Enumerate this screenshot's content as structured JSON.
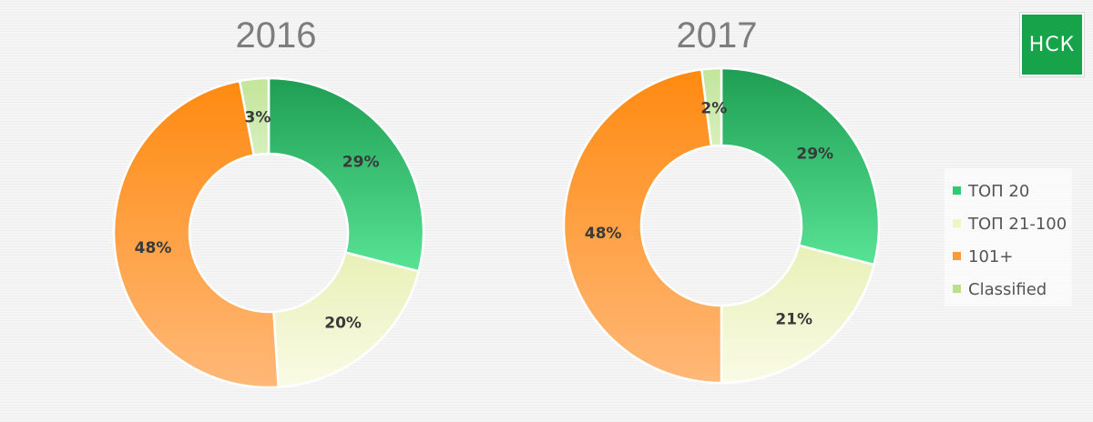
{
  "logo": {
    "text": "НСК",
    "color": "#16a34a"
  },
  "chart_data": [
    {
      "type": "pie",
      "title": "2016",
      "categories": [
        "ТОП 20",
        "ТОП 21-100",
        "101+",
        "Classified"
      ],
      "values": [
        29,
        20,
        48,
        3
      ],
      "labels": [
        "29%",
        "20%",
        "48%",
        "3%"
      ],
      "donut": true,
      "start_angle": "12 o'clock",
      "direction": "clockwise"
    },
    {
      "type": "pie",
      "title": "2017",
      "categories": [
        "ТОП 20",
        "ТОП 21-100",
        "101+",
        "Classified"
      ],
      "values": [
        29,
        21,
        48,
        2
      ],
      "labels": [
        "29%",
        "21%",
        "48%",
        "2%"
      ],
      "donut": true,
      "start_angle": "12 o'clock",
      "direction": "clockwise"
    }
  ],
  "legend": {
    "position": "right",
    "items": [
      {
        "label": "ТОП 20",
        "color": "#2ecc71"
      },
      {
        "label": "ТОП 21-100",
        "color": "#f0f4c3"
      },
      {
        "label": "101+",
        "color": "#ff9a3c"
      },
      {
        "label": "Classified",
        "color": "#b9e08a"
      }
    ]
  },
  "colors": {
    "top20": [
      "#1e9e54",
      "#58e394"
    ],
    "top21_100": [
      "#e9f0b7",
      "#fafbe6"
    ],
    "p101": [
      "#ff8a10",
      "#ffb878"
    ],
    "classified": [
      "#c2e59a",
      "#d7efbd"
    ]
  }
}
